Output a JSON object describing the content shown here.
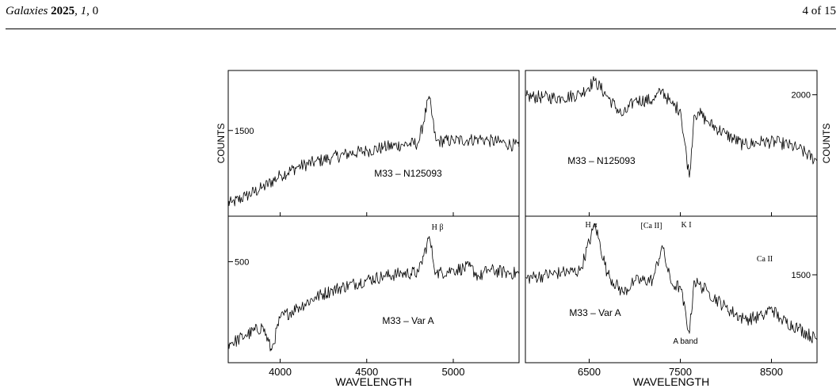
{
  "header": {
    "journal": "Galaxies",
    "year": "2025",
    "volume": "1",
    "issue": "0",
    "page": "4 of 15"
  },
  "chart_data": [
    {
      "type": "line",
      "panel": "top-left",
      "label": "M33 – N125093",
      "xlim": [
        3700,
        5380
      ],
      "xticks": [
        4000,
        4500,
        5000
      ],
      "ylim": [
        1000,
        1850
      ],
      "yticks": [
        1500
      ],
      "ylabel": "COUNTS",
      "x": [
        3720,
        3800,
        3900,
        4000,
        4100,
        4200,
        4300,
        4400,
        4500,
        4600,
        4700,
        4800,
        4860,
        4900,
        5000,
        5100,
        5150,
        5200,
        5300,
        5380
      ],
      "y": [
        1080,
        1120,
        1170,
        1240,
        1290,
        1320,
        1345,
        1370,
        1385,
        1405,
        1420,
        1430,
        1700,
        1440,
        1445,
        1450,
        1455,
        1445,
        1430,
        1410
      ],
      "annotations": []
    },
    {
      "type": "line",
      "panel": "top-right",
      "label": "M33 – N125093",
      "xlim": [
        5800,
        9000
      ],
      "xticks": [
        6500,
        7500,
        8500
      ],
      "ylim": [
        1000,
        2200
      ],
      "yticks": [
        2000
      ],
      "ylabel": "COUNTS",
      "x": [
        5800,
        6000,
        6200,
        6400,
        6563,
        6700,
        6870,
        7000,
        7200,
        7300,
        7400,
        7500,
        7600,
        7650,
        7700,
        7800,
        8000,
        8200,
        8400,
        8600,
        8800,
        9000
      ],
      "y": [
        1990,
        1985,
        1980,
        2010,
        2120,
        1990,
        1830,
        1960,
        1960,
        2040,
        1930,
        1880,
        1320,
        1830,
        1860,
        1780,
        1680,
        1590,
        1620,
        1610,
        1560,
        1460
      ],
      "annotations": []
    },
    {
      "type": "line",
      "panel": "bottom-left",
      "label": "M33 – Var A",
      "xlim": [
        3700,
        5380
      ],
      "xticks": [
        4000,
        4500,
        5000
      ],
      "xlabel": "WAVELENGTH",
      "ylim": [
        100,
        680
      ],
      "yticks": [
        500
      ],
      "x": [
        3720,
        3800,
        3900,
        3950,
        4000,
        4100,
        4200,
        4300,
        4400,
        4500,
        4600,
        4700,
        4800,
        4861,
        4900,
        5000,
        5100,
        5150,
        5200,
        5300,
        5380
      ],
      "y": [
        180,
        210,
        245,
        150,
        280,
        320,
        360,
        390,
        410,
        430,
        445,
        455,
        460,
        600,
        455,
        470,
        480,
        440,
        470,
        460,
        455
      ],
      "annotations": [
        "H β"
      ]
    },
    {
      "type": "line",
      "panel": "bottom-right",
      "label": "M33 – Var A",
      "xlim": [
        5800,
        9000
      ],
      "xticks": [
        6500,
        7500,
        8500
      ],
      "xlabel": "WAVELENGTH",
      "ylim": [
        900,
        1900
      ],
      "yticks": [
        1500
      ],
      "x": [
        5800,
        6000,
        6200,
        6400,
        6563,
        6700,
        6870,
        7000,
        7200,
        7300,
        7400,
        7500,
        7600,
        7650,
        7700,
        7800,
        8000,
        8200,
        8400,
        8500,
        8600,
        8800,
        9000
      ],
      "y": [
        1480,
        1500,
        1520,
        1530,
        1850,
        1510,
        1380,
        1460,
        1470,
        1700,
        1440,
        1420,
        1100,
        1460,
        1440,
        1390,
        1280,
        1200,
        1220,
        1280,
        1200,
        1140,
        1060
      ],
      "annotations": [
        "H α",
        "[Ca II]",
        "K I",
        "Ca II",
        "A band"
      ]
    }
  ]
}
